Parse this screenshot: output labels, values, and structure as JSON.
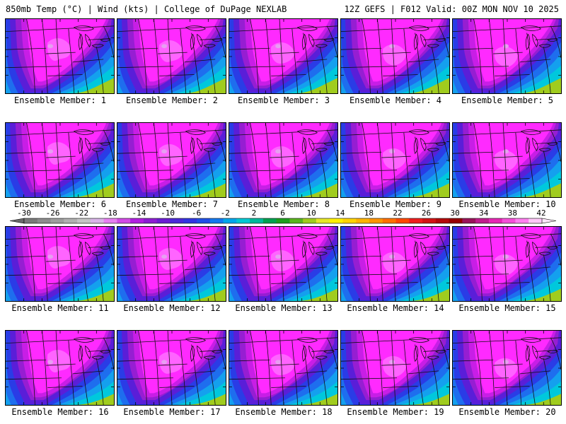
{
  "header": {
    "left_title": "850mb Temp (°C) | Wind (kts) | College of DuPage NEXLAB",
    "right_title": "12Z GEFS | F012 Valid: 00Z MON NOV 10 2025"
  },
  "panels": [
    {
      "label": "Ensemble Member: 1"
    },
    {
      "label": "Ensemble Member: 2"
    },
    {
      "label": "Ensemble Member: 3"
    },
    {
      "label": "Ensemble Member: 4"
    },
    {
      "label": "Ensemble Member: 5"
    },
    {
      "label": "Ensemble Member: 6"
    },
    {
      "label": "Ensemble Member: 7"
    },
    {
      "label": "Ensemble Member: 8"
    },
    {
      "label": "Ensemble Member: 9"
    },
    {
      "label": "Ensemble Member: 10"
    },
    {
      "label": "Ensemble Member: 11"
    },
    {
      "label": "Ensemble Member: 12"
    },
    {
      "label": "Ensemble Member: 13"
    },
    {
      "label": "Ensemble Member: 14"
    },
    {
      "label": "Ensemble Member: 15"
    },
    {
      "label": "Ensemble Member: 16"
    },
    {
      "label": "Ensemble Member: 17"
    },
    {
      "label": "Ensemble Member: 18"
    },
    {
      "label": "Ensemble Member: 19"
    },
    {
      "label": "Ensemble Member: 20"
    }
  ],
  "colorbar": {
    "tick_labels": [
      "-30",
      "-26",
      "-22",
      "-18",
      "-14",
      "-10",
      "-6",
      "-2",
      "2",
      "6",
      "10",
      "14",
      "18",
      "22",
      "26",
      "30",
      "34",
      "38",
      "42"
    ],
    "colors": [
      "#7a7a7a",
      "#8c8c8c",
      "#9e9e9e",
      "#b0b0b0",
      "#c4c4c4",
      "#d8b4e8",
      "#e680f0",
      "#d24be6",
      "#b020e0",
      "#8c1ed2",
      "#6a1ed2",
      "#4a2ad8",
      "#3236e0",
      "#2050e6",
      "#1478ee",
      "#00a6ea",
      "#00c8d2",
      "#00b89a",
      "#00a050",
      "#1e9e1e",
      "#5ab41e",
      "#a0cc1e",
      "#e6e628",
      "#fff000",
      "#ffd400",
      "#ffb400",
      "#ff9400",
      "#ff7000",
      "#ff4800",
      "#ee1e1e",
      "#d21414",
      "#b40a0a",
      "#960000",
      "#9a145a",
      "#c01e8c",
      "#e628b4",
      "#f550d8",
      "#ff80f0",
      "#ffc8f8"
    ]
  },
  "field_colors": {
    "magenta": "#ff2aff",
    "light_magenta": "#ff64ff",
    "pale": "#e6a0f0",
    "violet": "#c81ee6",
    "purple": "#961ed2",
    "indigo": "#5a1ed8",
    "blue": "#2a3ce6",
    "mid_blue": "#1e6eee",
    "cyan_blue": "#14a0ee",
    "cyan": "#00c8dc",
    "teal": "#00b496",
    "green": "#3cb428",
    "yellow_green": "#a0cc1e"
  }
}
